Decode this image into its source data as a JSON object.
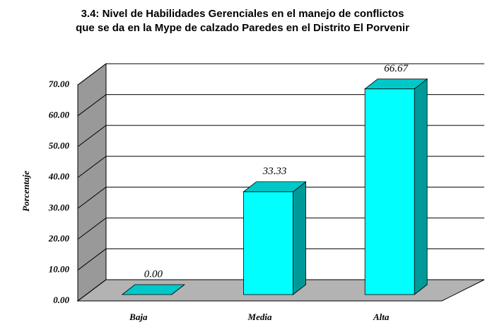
{
  "chart_data": {
    "type": "bar3d",
    "title": [
      "3.4: Nivel de Habilidades Gerenciales en el manejo de conflictos",
      "que se da en la Mype de calzado Paredes en el Distrito El Porvenir"
    ],
    "ylabel": "Porcentaje",
    "categories": [
      "Baja",
      "Media",
      "Alta"
    ],
    "values": [
      0,
      33.33,
      66.67
    ],
    "value_labels": [
      "0.00",
      "33.33",
      "66.67"
    ],
    "color": "#00ffff",
    "ylim": [
      0,
      70
    ],
    "yticks": [
      {
        "value": 0,
        "label": "0.00"
      },
      {
        "value": 10,
        "label": "10.00"
      },
      {
        "value": 20,
        "label": "20.00"
      },
      {
        "value": 30,
        "label": "30.00"
      },
      {
        "value": 40,
        "label": "40.00"
      },
      {
        "value": 50,
        "label": "50.00"
      },
      {
        "value": 60,
        "label": "60.00"
      },
      {
        "value": 70,
        "label": "70.00"
      }
    ],
    "grid": true
  }
}
